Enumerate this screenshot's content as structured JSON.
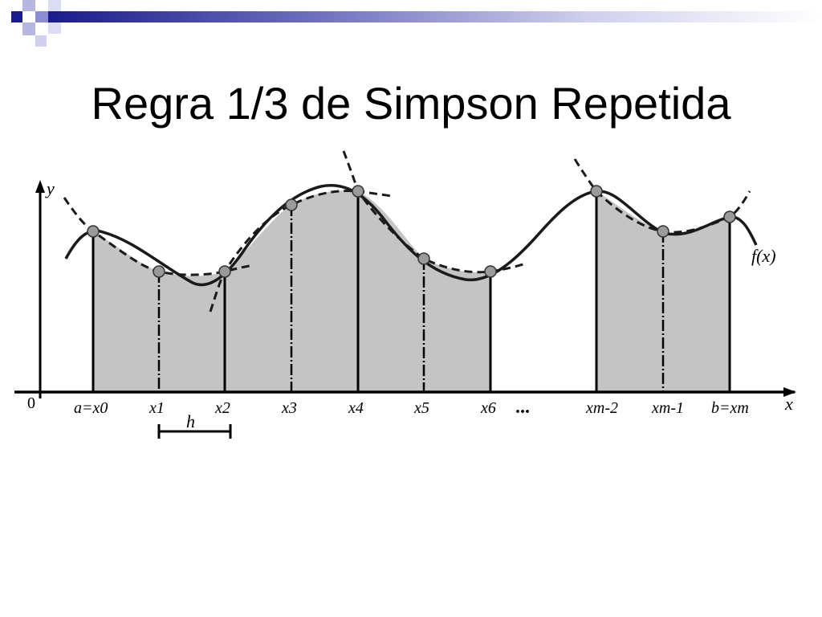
{
  "slide": {
    "title": "Regra 1/3 de Simpson Repetida"
  },
  "diagram": {
    "y_axis_label": "y",
    "x_axis_label": "x",
    "origin_label": "0",
    "function_label": "f(x)",
    "step_label": "h",
    "ellipsis": "...",
    "node_labels": [
      "a=x0",
      "x1",
      "x2",
      "x3",
      "x4",
      "x5",
      "x6",
      "xm-2",
      "xm-1",
      "b=xm"
    ]
  },
  "colors": {
    "accent": "#1a1a8c",
    "fill": "#c4c4c4",
    "curve": "#1a1a1a"
  }
}
